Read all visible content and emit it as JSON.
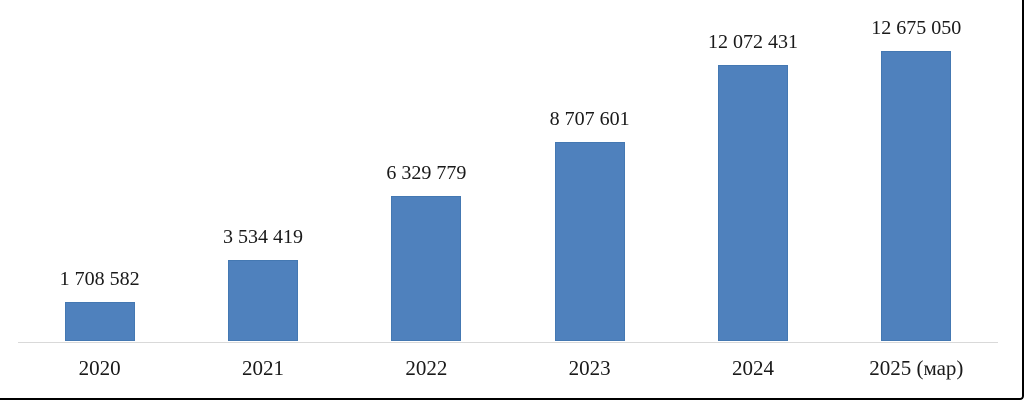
{
  "chart_data": {
    "type": "bar",
    "categories": [
      "2020",
      "2021",
      "2022",
      "2023",
      "2024",
      "2025 (мар)"
    ],
    "values": [
      1708582,
      3534419,
      6329779,
      8707601,
      12072431,
      12675050
    ],
    "data_labels": [
      "1 708 582",
      "3 534 419",
      "6 329 779",
      "8 707 601",
      "12 072 431",
      "12 675 050"
    ],
    "title": "",
    "xlabel": "",
    "ylabel": "",
    "ylim": [
      0,
      12675050
    ],
    "grid": "off",
    "legend": "none",
    "y_axis_visible": false,
    "bar_color": "#4f81bd",
    "bar_border_color": "#4478b2",
    "axis_line_color": "#d9d9d9",
    "text_color": "#1a1a1a",
    "frame_border_color": "#000000"
  }
}
